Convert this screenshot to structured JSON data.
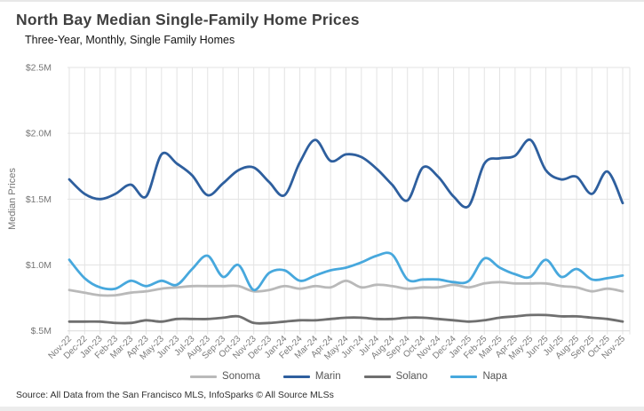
{
  "page": {
    "title": "North Bay Median Single-Family Home Prices",
    "subtitle": "Three-Year, Monthly, Single Family Homes",
    "source": "Source: All Data from the San Francisco MLS, InfoSparks © All Source MLSs"
  },
  "chart_data": {
    "type": "line",
    "title": "North Bay Median Single-Family Home Prices",
    "subtitle": "Three-Year, Monthly, Single Family Homes",
    "xlabel": "",
    "ylabel": "Median Prices",
    "ylim": [
      0.5,
      2.5
    ],
    "y_tick_values": [
      2.5,
      2.0,
      1.5,
      1.0,
      0.5
    ],
    "y_tick_labels": [
      "$2.5M",
      "$2.0M",
      "$1.5M",
      "$1.0M",
      "$.5M"
    ],
    "grid": true,
    "legend_position": "bottom",
    "categories": [
      "Nov-22",
      "Dec-22",
      "Jan-23",
      "Feb-23",
      "Mar-23",
      "Apr-23",
      "May-23",
      "Jun-23",
      "Jul-23",
      "Aug-23",
      "Sep-23",
      "Oct-23",
      "Nov-23",
      "Dec-23",
      "Jan-24",
      "Feb-24",
      "Mar-24",
      "Apr-24",
      "May-24",
      "Jun-24",
      "Jul-24",
      "Aug-24",
      "Sep-24",
      "Oct-24",
      "Nov-24",
      "Dec-24",
      "Jan-25",
      "Feb-25",
      "Mar-25",
      "Apr-25",
      "May-25",
      "Jun-25",
      "Jul-25",
      "Aug-25",
      "Sep-25",
      "Oct-25",
      "Nov-25"
    ],
    "series": [
      {
        "name": "Sonoma",
        "color": "#b9b9b9",
        "values": [
          0.81,
          0.79,
          0.77,
          0.77,
          0.79,
          0.8,
          0.82,
          0.83,
          0.84,
          0.84,
          0.84,
          0.84,
          0.8,
          0.81,
          0.84,
          0.82,
          0.84,
          0.83,
          0.88,
          0.83,
          0.85,
          0.84,
          0.82,
          0.83,
          0.83,
          0.85,
          0.83,
          0.86,
          0.87,
          0.86,
          0.86,
          0.86,
          0.84,
          0.83,
          0.8,
          0.82,
          0.8
        ]
      },
      {
        "name": "Marin",
        "color": "#2e5f9e",
        "values": [
          1.65,
          1.54,
          1.5,
          1.54,
          1.61,
          1.52,
          1.84,
          1.77,
          1.68,
          1.53,
          1.62,
          1.72,
          1.74,
          1.63,
          1.53,
          1.78,
          1.95,
          1.79,
          1.84,
          1.82,
          1.73,
          1.61,
          1.49,
          1.74,
          1.67,
          1.52,
          1.45,
          1.77,
          1.81,
          1.83,
          1.95,
          1.72,
          1.65,
          1.67,
          1.54,
          1.71,
          1.47
        ]
      },
      {
        "name": "Solano",
        "color": "#6f6f6f",
        "values": [
          0.57,
          0.57,
          0.57,
          0.56,
          0.56,
          0.58,
          0.57,
          0.59,
          0.59,
          0.59,
          0.6,
          0.61,
          0.56,
          0.56,
          0.57,
          0.58,
          0.58,
          0.59,
          0.6,
          0.6,
          0.59,
          0.59,
          0.6,
          0.6,
          0.59,
          0.58,
          0.57,
          0.58,
          0.6,
          0.61,
          0.62,
          0.62,
          0.61,
          0.61,
          0.6,
          0.59,
          0.57
        ]
      },
      {
        "name": "Napa",
        "color": "#47a8dd",
        "values": [
          1.04,
          0.9,
          0.83,
          0.82,
          0.88,
          0.84,
          0.88,
          0.85,
          0.97,
          1.07,
          0.91,
          1.0,
          0.81,
          0.94,
          0.96,
          0.88,
          0.92,
          0.96,
          0.98,
          1.02,
          1.07,
          1.08,
          0.89,
          0.89,
          0.89,
          0.87,
          0.88,
          1.05,
          0.98,
          0.93,
          0.91,
          1.04,
          0.91,
          0.97,
          0.89,
          0.9,
          0.92
        ]
      }
    ]
  },
  "colors": {
    "grid": "#e3e3e3",
    "axis_line": "#dadada",
    "axis_text": "#757575",
    "tick_text": "#7a7a7a"
  }
}
